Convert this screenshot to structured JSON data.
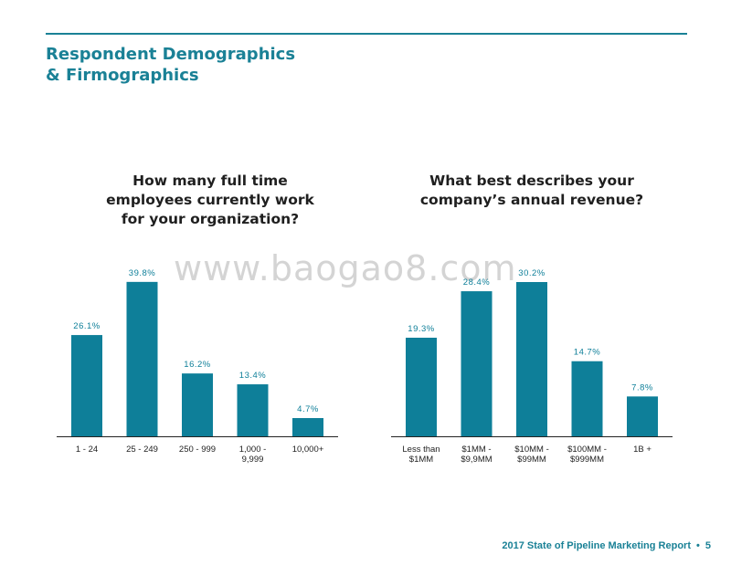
{
  "page": {
    "title_lines": [
      "Respondent Demographics",
      "& Firmographics"
    ],
    "watermark": "www.baogao8.com",
    "footer_text": "2017 State of Pipeline Marketing Report",
    "footer_separator": "•",
    "footer_page": "5",
    "accent_color": "#1a8196"
  },
  "chart_data": [
    {
      "type": "bar",
      "title_lines": [
        "How many full time",
        "employees currently work",
        "for your organization?"
      ],
      "categories": [
        [
          "1 - 24"
        ],
        [
          "25 - 249"
        ],
        [
          "250 - 999"
        ],
        [
          "1,000 -",
          "9,999"
        ],
        [
          "10,000+"
        ]
      ],
      "values": [
        26.1,
        39.8,
        16.2,
        13.4,
        4.7
      ],
      "value_labels": [
        "26.1%",
        "39.8%",
        "16.2%",
        "13.4%",
        "4.7%"
      ],
      "ylim": [
        0,
        40
      ],
      "grid": false,
      "bar_color": "#0e7f99"
    },
    {
      "type": "bar",
      "title_lines": [
        "What best describes your",
        "company’s annual revenue?"
      ],
      "categories": [
        [
          "Less than",
          "$1MM"
        ],
        [
          "$1MM -",
          "$9,9MM"
        ],
        [
          "$10MM -",
          "$99MM"
        ],
        [
          "$100MM -",
          "$999MM"
        ],
        [
          "1B +"
        ]
      ],
      "values": [
        19.3,
        28.4,
        30.2,
        14.7,
        7.8
      ],
      "value_labels": [
        "19.3%",
        "28.4%",
        "30.2%",
        "14.7%",
        "7.8%"
      ],
      "ylim": [
        0,
        30.2
      ],
      "grid": false,
      "bar_color": "#0e7f99"
    }
  ]
}
